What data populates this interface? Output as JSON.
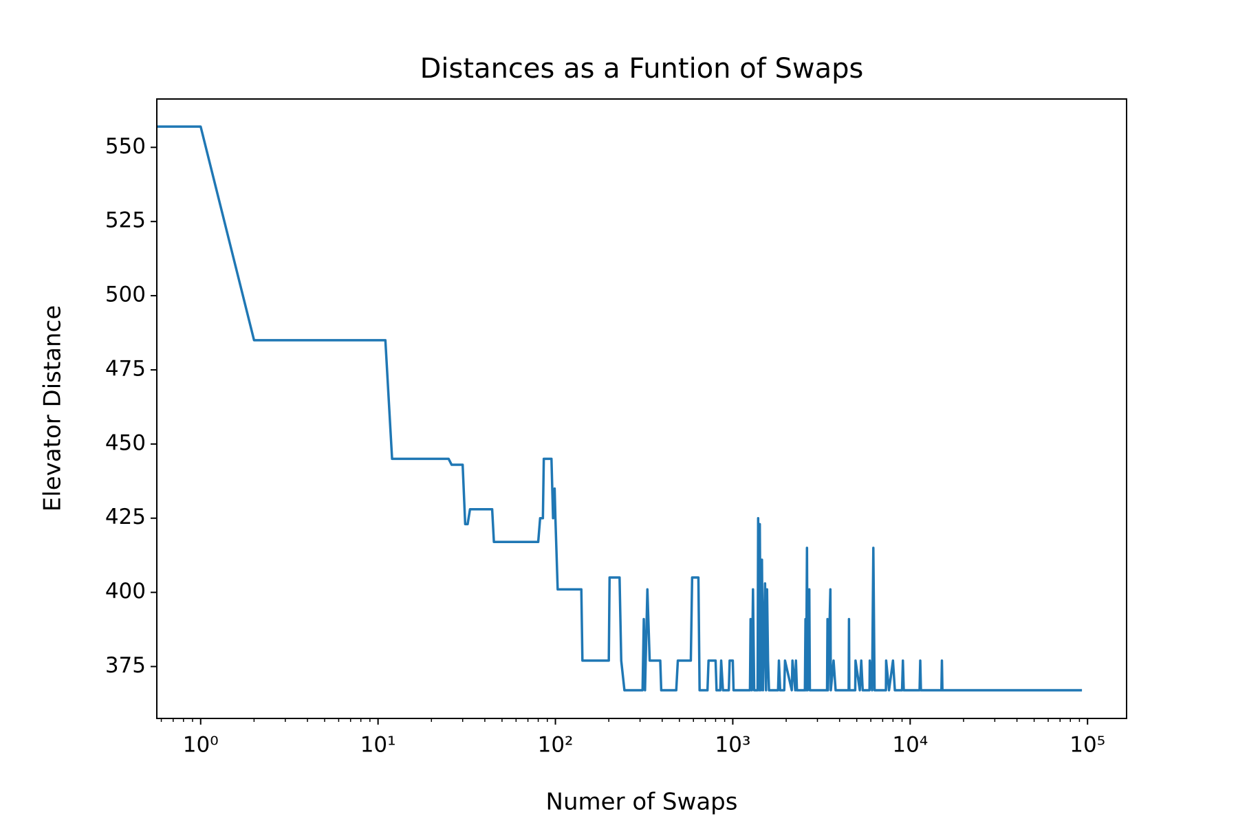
{
  "chart_data": {
    "type": "line",
    "title": "Distances as a Funtion of Swaps",
    "xlabel": "Numer of Swaps",
    "ylabel": "Elevator Distance",
    "xscale": "log",
    "minor_ticks": true,
    "color": "#1f77b4",
    "xlim": [
      0.566,
      166000
    ],
    "ylim": [
      357.5,
      566.3
    ],
    "xticks": [
      {
        "value": 1,
        "label": "10⁰"
      },
      {
        "value": 10,
        "label": "10¹"
      },
      {
        "value": 100,
        "label": "10²"
      },
      {
        "value": 1000,
        "label": "10³"
      },
      {
        "value": 10000,
        "label": "10⁴"
      },
      {
        "value": 100000,
        "label": "10⁵"
      }
    ],
    "yticks": [
      375,
      400,
      425,
      450,
      475,
      500,
      525,
      550
    ],
    "x": [
      0,
      1,
      2,
      11,
      12,
      25,
      26,
      30,
      31,
      32,
      33,
      44,
      45,
      80,
      82,
      85,
      86,
      95,
      97,
      99,
      100,
      103,
      140,
      142,
      200,
      202,
      230,
      235,
      245,
      310,
      315,
      320,
      330,
      340,
      390,
      395,
      480,
      490,
      580,
      590,
      640,
      650,
      720,
      730,
      800,
      810,
      850,
      860,
      880,
      950,
      960,
      1000,
      1010,
      1250,
      1260,
      1280,
      1300,
      1320,
      1380,
      1390,
      1410,
      1420,
      1440,
      1460,
      1480,
      1520,
      1540,
      1560,
      1580,
      1600,
      1800,
      1820,
      1850,
      1950,
      1970,
      2150,
      2170,
      2250,
      2270,
      2300,
      2550,
      2570,
      2590,
      2620,
      2640,
      2700,
      2720,
      3400,
      3420,
      3440,
      3550,
      3570,
      3700,
      3800,
      4500,
      4520,
      4540,
      4900,
      4920,
      5200,
      5300,
      5400,
      5900,
      5920,
      6100,
      6200,
      6300,
      7300,
      7320,
      7600,
      8000,
      8200,
      9000,
      9100,
      9200,
      11300,
      11400,
      11500,
      15000,
      15100,
      15200,
      93000
    ],
    "values": [
      557,
      557,
      485,
      485,
      445,
      445,
      443,
      443,
      423,
      423,
      428,
      428,
      417,
      417,
      425,
      425,
      445,
      445,
      425,
      435,
      425,
      401,
      401,
      377,
      377,
      405,
      405,
      377,
      367,
      367,
      391,
      367,
      401,
      377,
      377,
      367,
      367,
      377,
      377,
      405,
      405,
      367,
      367,
      377,
      377,
      367,
      367,
      377,
      367,
      367,
      377,
      377,
      367,
      367,
      391,
      367,
      401,
      367,
      367,
      425,
      367,
      423,
      367,
      411,
      367,
      403,
      367,
      401,
      377,
      367,
      367,
      377,
      367,
      367,
      377,
      367,
      377,
      367,
      377,
      367,
      367,
      391,
      367,
      415,
      367,
      401,
      367,
      367,
      391,
      367,
      401,
      367,
      377,
      367,
      367,
      391,
      367,
      367,
      377,
      367,
      377,
      367,
      367,
      377,
      367,
      415,
      367,
      367,
      377,
      367,
      377,
      367,
      367,
      377,
      367,
      367,
      377,
      367,
      367,
      377,
      367,
      367
    ]
  }
}
